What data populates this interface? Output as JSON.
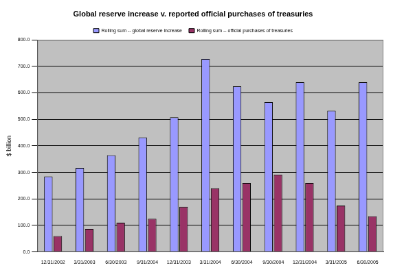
{
  "chart_data": {
    "type": "bar",
    "title": "Global reserve increase v. reported official purchases of treasuries",
    "y_label": "$ billion",
    "categories": [
      "12/31/2002",
      "3/31/2003",
      "6/30/2003",
      "9/31/2004",
      "12/31/2003",
      "3/31/2004",
      "6/30/2004",
      "9/30/2004",
      "12/31/2004",
      "3/31/2005",
      "6/30/2005"
    ],
    "series": [
      {
        "name": "Rolling sum -- global reserve increase",
        "color": "#9999ff",
        "values": [
          285,
          317,
          365,
          432,
          508,
          728,
          625,
          565,
          640,
          533,
          640
        ]
      },
      {
        "name": "Rolling sum -- official purchases of treasuries",
        "color": "#993366",
        "values": [
          60,
          87,
          110,
          125,
          170,
          240,
          260,
          292,
          260,
          175,
          135
        ]
      }
    ],
    "ylim": [
      0,
      800
    ],
    "yticks": [
      {
        "value": 0,
        "label": "0.0"
      },
      {
        "value": 100,
        "label": "100.0"
      },
      {
        "value": 200,
        "label": "200.0"
      },
      {
        "value": 300,
        "label": "300.0"
      },
      {
        "value": 400,
        "label": "400.0"
      },
      {
        "value": 500,
        "label": "500.0"
      },
      {
        "value": 600,
        "label": "600.0"
      },
      {
        "value": 700,
        "label": "700.0"
      },
      {
        "value": 800,
        "label": "800.0"
      }
    ],
    "grid": true,
    "legend": "top"
  }
}
